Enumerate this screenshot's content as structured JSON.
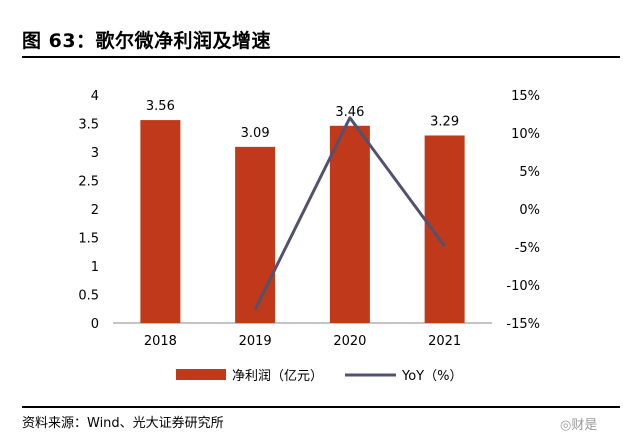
{
  "figure": {
    "title": "图 63：歌尔微净利润及增速",
    "source": "资料来源：Wind、光大证券研究所",
    "watermark": "◎财是"
  },
  "chart_data": {
    "type": "bar",
    "categories": [
      "2018",
      "2019",
      "2020",
      "2021"
    ],
    "series": [
      {
        "name": "净利润（亿元）",
        "type": "bar",
        "axis": "left",
        "values": [
          3.56,
          3.09,
          3.46,
          3.29
        ],
        "color": "#c0391b"
      },
      {
        "name": "YoY（%）",
        "type": "line",
        "axis": "right",
        "values": [
          null,
          -13.2,
          12.0,
          -4.9
        ],
        "color": "#525170"
      }
    ],
    "data_labels": [
      "3.56",
      "3.09",
      "3.46",
      "3.29"
    ],
    "left_axis": {
      "ylim": [
        0,
        4
      ],
      "ticks": [
        "0",
        "0.5",
        "1",
        "1.5",
        "2",
        "2.5",
        "3",
        "3.5",
        "4"
      ]
    },
    "right_axis": {
      "ylim": [
        -15,
        15
      ],
      "ticks": [
        "-15%",
        "-10%",
        "-5%",
        "0%",
        "5%",
        "10%",
        "15%"
      ]
    },
    "grid": false,
    "legend_position": "bottom"
  }
}
